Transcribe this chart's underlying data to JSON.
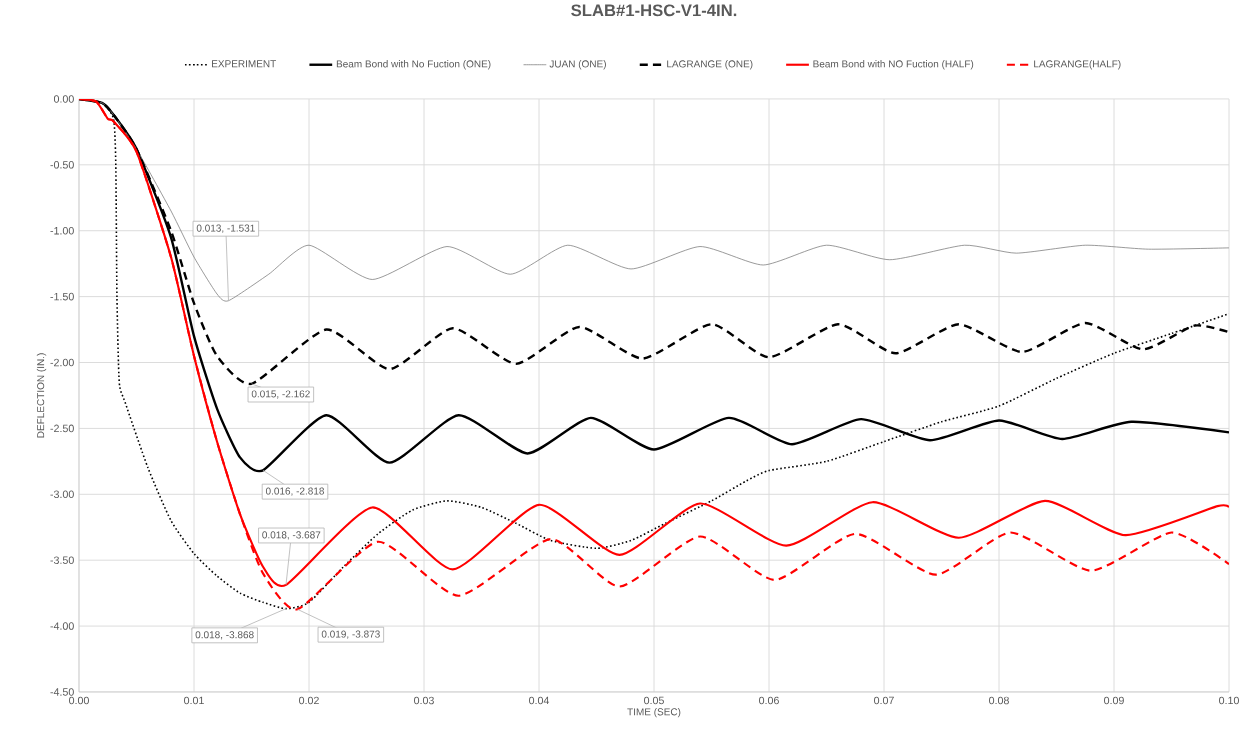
{
  "chart_data": {
    "type": "line",
    "title": "SLAB#1-HSC-V1-4IN.",
    "xlabel": "TIME (SEC)",
    "ylabel": "DEFLECTION (IN.)",
    "xlim": [
      0,
      0.1
    ],
    "ylim": [
      -4.5,
      0
    ],
    "xticks": [
      {
        "value": 0,
        "label": "0.00"
      },
      {
        "value": 0.01,
        "label": "0.01"
      },
      {
        "value": 0.02,
        "label": "0.02"
      },
      {
        "value": 0.03,
        "label": "0.03"
      },
      {
        "value": 0.04,
        "label": "0.04"
      },
      {
        "value": 0.05,
        "label": "0.05"
      },
      {
        "value": 0.06,
        "label": "0.06"
      },
      {
        "value": 0.07,
        "label": "0.07"
      },
      {
        "value": 0.08,
        "label": "0.08"
      },
      {
        "value": 0.09,
        "label": "0.09"
      },
      {
        "value": 0.1,
        "label": "0.10"
      }
    ],
    "yticks": [
      {
        "value": 0,
        "label": "0.00"
      },
      {
        "value": -0.5,
        "label": "-0.50"
      },
      {
        "value": -1,
        "label": "-1.00"
      },
      {
        "value": -1.5,
        "label": "-1.50"
      },
      {
        "value": -2,
        "label": "-2.00"
      },
      {
        "value": -2.5,
        "label": "-2.50"
      },
      {
        "value": -3,
        "label": "-3.00"
      },
      {
        "value": -3.5,
        "label": "-3.50"
      },
      {
        "value": -4,
        "label": "-4.00"
      },
      {
        "value": -4.5,
        "label": "-4.50"
      }
    ],
    "grid": true,
    "legend": "top",
    "marker": "none",
    "series": [
      {
        "name": "EXPERIMENT",
        "color": "#000000",
        "line_style": "dotted",
        "x": [
          0,
          0.002,
          0.003,
          0.0032,
          0.0033,
          0.0035,
          0.004,
          0.006,
          0.008,
          0.01,
          0.012,
          0.014,
          0.016,
          0.018,
          0.02,
          0.023,
          0.026,
          0.029,
          0.032,
          0.035,
          0.038,
          0.041,
          0.045,
          0.048,
          0.051,
          0.055,
          0.058,
          0.06,
          0.065,
          0.07,
          0.075,
          0.08,
          0.085,
          0.09,
          0.095,
          0.1
        ],
        "values": [
          0,
          -0.03,
          -0.15,
          -0.5,
          -1.5,
          -2.15,
          -2.3,
          -2.8,
          -3.2,
          -3.45,
          -3.62,
          -3.75,
          -3.82,
          -3.868,
          -3.82,
          -3.55,
          -3.3,
          -3.12,
          -3.05,
          -3.1,
          -3.22,
          -3.35,
          -3.41,
          -3.35,
          -3.22,
          -3.05,
          -2.9,
          -2.82,
          -2.75,
          -2.6,
          -2.45,
          -2.33,
          -2.12,
          -1.93,
          -1.78,
          -1.63
        ]
      },
      {
        "name": "Beam Bond with No Fuction (ONE)",
        "color": "#000000",
        "line_style": "solid",
        "x": [
          0,
          0.002,
          0.003,
          0.005,
          0.008,
          0.01,
          0.012,
          0.014,
          0.016,
          0.0215,
          0.027,
          0.033,
          0.039,
          0.0445,
          0.05,
          0.0565,
          0.062,
          0.068,
          0.074,
          0.08,
          0.0855,
          0.0915,
          0.1
        ],
        "values": [
          0,
          -0.03,
          -0.12,
          -0.38,
          -1.05,
          -1.8,
          -2.35,
          -2.72,
          -2.818,
          -2.4,
          -2.76,
          -2.4,
          -2.69,
          -2.42,
          -2.66,
          -2.42,
          -2.62,
          -2.43,
          -2.59,
          -2.44,
          -2.58,
          -2.45,
          -2.53
        ]
      },
      {
        "name": "JUAN  (ONE)",
        "color": "#808080",
        "line_style": "solid",
        "x": [
          0,
          0.002,
          0.003,
          0.005,
          0.008,
          0.01,
          0.012,
          0.013,
          0.0165,
          0.02,
          0.0255,
          0.032,
          0.0375,
          0.0425,
          0.048,
          0.054,
          0.0595,
          0.065,
          0.0705,
          0.077,
          0.0815,
          0.0875,
          0.093,
          0.1
        ],
        "values": [
          0,
          -0.03,
          -0.12,
          -0.38,
          -0.85,
          -1.2,
          -1.48,
          -1.531,
          -1.33,
          -1.11,
          -1.37,
          -1.12,
          -1.33,
          -1.11,
          -1.29,
          -1.12,
          -1.26,
          -1.11,
          -1.22,
          -1.11,
          -1.17,
          -1.11,
          -1.14,
          -1.13
        ]
      },
      {
        "name": "LAGRANGE (ONE)",
        "color": "#000000",
        "line_style": "dashed",
        "x": [
          0,
          0.002,
          0.003,
          0.005,
          0.008,
          0.01,
          0.012,
          0.015,
          0.0215,
          0.027,
          0.0325,
          0.038,
          0.0435,
          0.049,
          0.055,
          0.06,
          0.066,
          0.071,
          0.0765,
          0.082,
          0.0875,
          0.0925,
          0.097,
          0.1
        ],
        "values": [
          0,
          -0.03,
          -0.12,
          -0.38,
          -1.0,
          -1.55,
          -1.95,
          -2.162,
          -1.75,
          -2.05,
          -1.74,
          -2.01,
          -1.73,
          -1.97,
          -1.71,
          -1.96,
          -1.71,
          -1.93,
          -1.71,
          -1.92,
          -1.7,
          -1.9,
          -1.72,
          -1.77
        ]
      },
      {
        "name": "Beam Bond with NO Fuction (HALF)",
        "color": "#ff0000",
        "line_style": "solid",
        "x": [
          0,
          0.0015,
          0.0025,
          0.003,
          0.005,
          0.008,
          0.01,
          0.012,
          0.014,
          0.016,
          0.018,
          0.0255,
          0.0325,
          0.04,
          0.047,
          0.054,
          0.0615,
          0.069,
          0.0765,
          0.084,
          0.091,
          0.099,
          0.1
        ],
        "values": [
          0,
          -0.02,
          -0.15,
          -0.17,
          -0.4,
          -1.2,
          -1.95,
          -2.6,
          -3.15,
          -3.55,
          -3.687,
          -3.1,
          -3.57,
          -3.08,
          -3.46,
          -3.07,
          -3.39,
          -3.06,
          -3.33,
          -3.05,
          -3.31,
          -3.09,
          -3.1
        ]
      },
      {
        "name": "LAGRANGE(HALF)",
        "color": "#ff0000",
        "line_style": "dashed",
        "x": [
          0,
          0.0015,
          0.0025,
          0.003,
          0.005,
          0.008,
          0.01,
          0.012,
          0.014,
          0.016,
          0.019,
          0.026,
          0.033,
          0.041,
          0.047,
          0.054,
          0.0605,
          0.0675,
          0.0745,
          0.081,
          0.088,
          0.095,
          0.1
        ],
        "values": [
          0,
          -0.02,
          -0.15,
          -0.17,
          -0.4,
          -1.2,
          -1.95,
          -2.6,
          -3.15,
          -3.6,
          -3.873,
          -3.36,
          -3.77,
          -3.34,
          -3.7,
          -3.32,
          -3.65,
          -3.3,
          -3.61,
          -3.29,
          -3.58,
          -3.29,
          -3.53
        ]
      }
    ],
    "annotations": [
      {
        "text": "0.013, -1.531",
        "x": 0.013,
        "y": -1.531
      },
      {
        "text": "0.015, -2.162",
        "x": 0.015,
        "y": -2.162
      },
      {
        "text": "0.016, -2.818",
        "x": 0.016,
        "y": -2.818
      },
      {
        "text": "0.018, -3.687",
        "x": 0.018,
        "y": -3.687
      },
      {
        "text": "0.018, -3.868",
        "x": 0.018,
        "y": -3.868
      },
      {
        "text": "0.019, -3.873",
        "x": 0.019,
        "y": -3.873
      }
    ]
  }
}
